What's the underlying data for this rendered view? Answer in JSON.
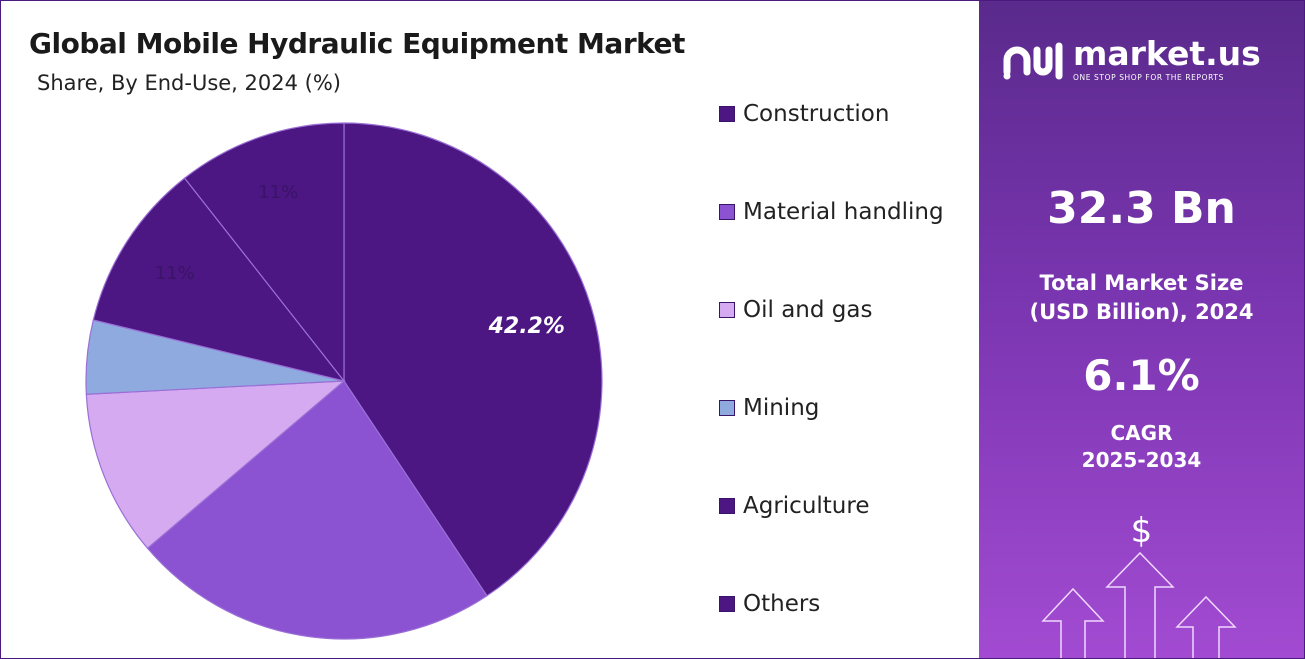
{
  "title": "Global Mobile Hydraulic Equipment Market",
  "subtitle": "Share, By End-Use, 2024 (%)",
  "chart_data": {
    "type": "pie",
    "title": "Global Mobile Hydraulic Equipment Market",
    "subtitle": "Share, By End-Use, 2024 (%)",
    "categories": [
      "Construction",
      "Material handling",
      "Oil and gas",
      "Mining",
      "Agriculture",
      "Others"
    ],
    "values": [
      42.2,
      24.0,
      10.8,
      4.8,
      11,
      11
    ],
    "data_labels": [
      "42.2%",
      "",
      "",
      "",
      "11%",
      "11%"
    ],
    "colors": [
      "#4c1683",
      "#8b52d1",
      "#d5aaf0",
      "#8eaadf",
      "#4c1683",
      "#4c1683"
    ],
    "legend": "right"
  },
  "sidebar": {
    "logo_name": "market.us",
    "logo_tagline": "ONE STOP SHOP FOR THE REPORTS",
    "market_size": "32.3 Bn",
    "market_size_label_1": "Total Market Size",
    "market_size_label_2": "(USD Billion), 2024",
    "cagr": "6.1%",
    "cagr_label_1": "CAGR",
    "cagr_label_2": "2025-2034",
    "currency_symbol": "$"
  }
}
